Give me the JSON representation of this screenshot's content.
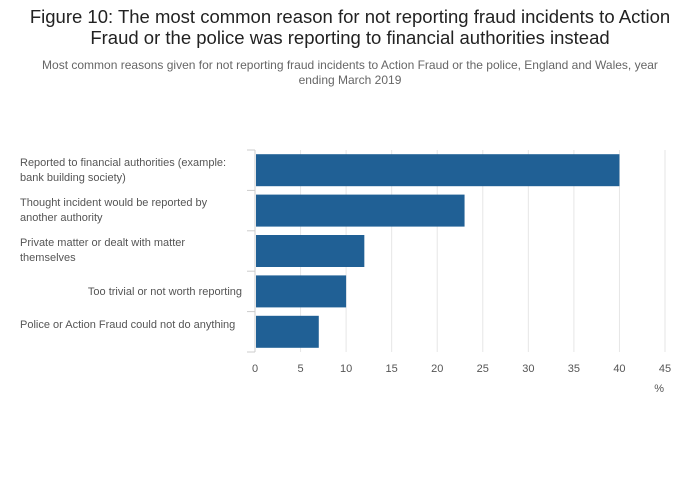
{
  "chart_data": {
    "type": "bar",
    "orientation": "horizontal",
    "title": "Figure 10: The most common reason for not reporting fraud incidents to Action Fraud or the police was reporting to financial authorities instead",
    "subtitle": "Most common reasons given for not reporting fraud incidents to Action Fraud or the police, England and Wales, year ending March 2019",
    "categories": [
      "Reported to financial authorities (example: bank building society)",
      "Thought incident would be reported by another authority",
      "Private matter or dealt with matter themselves",
      "Too trivial or not worth reporting",
      "Police or Action Fraud could not do anything"
    ],
    "values": [
      40,
      23,
      12,
      10,
      7
    ],
    "x_ticks": [
      "0",
      "5",
      "10",
      "15",
      "20",
      "25",
      "30",
      "35",
      "40",
      "45"
    ],
    "xlim": [
      0,
      45
    ],
    "xlabel": "%",
    "ylabel": "",
    "grid": true,
    "bar_color": "#206095",
    "grid_color": "#e6e6e6"
  }
}
